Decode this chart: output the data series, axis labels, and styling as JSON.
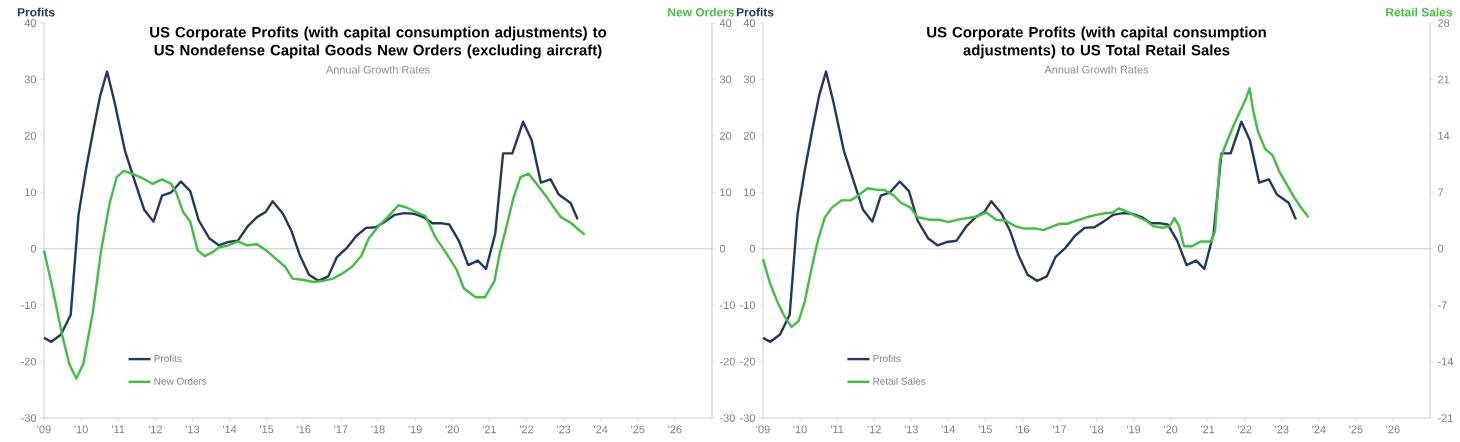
{
  "chart_data": [
    {
      "type": "line",
      "title": "US Corporate Profits (with capital consumption adjustments) to US Nondefense Capital Goods New Orders (excluding aircraft)",
      "subtitle": "Annual Growth Rates",
      "ylabel": "Profits",
      "y2label": "New Orders",
      "xlim": [
        2009,
        2027
      ],
      "ylim": [
        -30,
        40
      ],
      "y2lim": [
        -30,
        40
      ],
      "xticks": [
        {
          "value": 2009,
          "label": "'09"
        },
        {
          "value": 2010,
          "label": "'10"
        },
        {
          "value": 2011,
          "label": "'11"
        },
        {
          "value": 2012,
          "label": "'12"
        },
        {
          "value": 2013,
          "label": "'13"
        },
        {
          "value": 2014,
          "label": "'14"
        },
        {
          "value": 2015,
          "label": "'15"
        },
        {
          "value": 2016,
          "label": "'16"
        },
        {
          "value": 2017,
          "label": "'17"
        },
        {
          "value": 2018,
          "label": "'18"
        },
        {
          "value": 2019,
          "label": "'19"
        },
        {
          "value": 2020,
          "label": "'20"
        },
        {
          "value": 2021,
          "label": "'21"
        },
        {
          "value": 2022,
          "label": "'22"
        },
        {
          "value": 2023,
          "label": "'23"
        },
        {
          "value": 2024,
          "label": "'24"
        },
        {
          "value": 2025,
          "label": "'25"
        },
        {
          "value": 2026,
          "label": "'26"
        }
      ],
      "yticks": [
        -30,
        -20,
        -10,
        0,
        10,
        20,
        30,
        40
      ],
      "y2ticks": [
        -30,
        -20,
        -10,
        0,
        10,
        20,
        30,
        40
      ],
      "legend": "bottom left",
      "ref_lines": [
        {
          "axis": "y",
          "value": 0,
          "color": "#bfbfbf"
        }
      ],
      "series": [
        {
          "name": "Profits",
          "color": "#1f3864",
          "axis": "y",
          "x": [
            2009.0,
            2009.2,
            2009.46,
            2009.72,
            2009.93,
            2010.13,
            2010.32,
            2010.51,
            2010.7,
            2010.9,
            2011.18,
            2011.47,
            2011.7,
            2011.95,
            2012.18,
            2012.43,
            2012.69,
            2012.94,
            2013.17,
            2013.46,
            2013.71,
            2013.97,
            2014.22,
            2014.48,
            2014.74,
            2014.97,
            2015.16,
            2015.44,
            2015.67,
            2015.89,
            2016.14,
            2016.4,
            2016.66,
            2016.89,
            2017.17,
            2017.42,
            2017.68,
            2017.94,
            2018.19,
            2018.45,
            2018.71,
            2018.96,
            2019.22,
            2019.47,
            2019.73,
            2019.92,
            2020.18,
            2020.43,
            2020.69,
            2020.91,
            2021.16,
            2021.37,
            2021.62,
            2021.91,
            2022.14,
            2022.39,
            2022.65,
            2022.87,
            2023.19,
            2023.38
          ],
          "values": [
            -15.8,
            -16.5,
            -15.2,
            -11.7,
            6,
            14,
            20.7,
            27,
            31.4,
            26,
            17.4,
            11.5,
            6.9,
            4.8,
            9.4,
            10,
            11.9,
            10.2,
            5,
            1.8,
            0.6,
            1.2,
            1.4,
            3.9,
            5.6,
            6.5,
            8.4,
            6.2,
            3.1,
            -1.1,
            -4.6,
            -5.7,
            -4.9,
            -1.5,
            0.2,
            2.3,
            3.7,
            3.8,
            4.8,
            6,
            6.3,
            6.2,
            5.6,
            4.5,
            4.5,
            4.3,
            1.4,
            -2.9,
            -2.1,
            -3.6,
            2.7,
            16.9,
            16.9,
            22.5,
            19.2,
            11.7,
            12.3,
            9.6,
            8.1,
            5.2
          ]
        },
        {
          "name": "New Orders",
          "color": "#3ec23e",
          "axis": "y2",
          "x": [
            2009.0,
            2009.23,
            2009.49,
            2009.68,
            2009.87,
            2010.06,
            2010.32,
            2010.54,
            2010.77,
            2010.96,
            2011.15,
            2011.41,
            2011.66,
            2011.92,
            2012.18,
            2012.43,
            2012.56,
            2012.75,
            2012.94,
            2013.14,
            2013.33,
            2013.52,
            2013.71,
            2013.97,
            2014.22,
            2014.48,
            2014.74,
            2014.99,
            2015.25,
            2015.5,
            2015.7,
            2015.95,
            2016.27,
            2016.53,
            2016.78,
            2017.04,
            2017.3,
            2017.55,
            2017.75,
            2018.0,
            2018.26,
            2018.55,
            2018.77,
            2019.03,
            2019.28,
            2019.54,
            2019.79,
            2020.11,
            2020.31,
            2020.63,
            2020.88,
            2021.14,
            2021.27,
            2021.46,
            2021.65,
            2021.84,
            2022.06,
            2022.27,
            2022.52,
            2022.74,
            2022.93,
            2023.19,
            2023.38,
            2023.57
          ],
          "values": [
            -0.3,
            -7,
            -15.3,
            -20.4,
            -23,
            -20.4,
            -11.1,
            -0.3,
            8.1,
            12.7,
            13.8,
            13.2,
            12.5,
            11.5,
            12.3,
            11.5,
            10,
            6.5,
            4.8,
            -0.3,
            -1.3,
            -0.7,
            0.2,
            0.6,
            1.3,
            0.6,
            0.8,
            -0.3,
            -1.8,
            -3.2,
            -5.3,
            -5.5,
            -5.9,
            -5.7,
            -5.3,
            -4.4,
            -3.2,
            -1.3,
            1.8,
            3.9,
            5.6,
            7.7,
            7.3,
            6.5,
            5.8,
            2.1,
            -0.3,
            -3.6,
            -7,
            -8.6,
            -8.6,
            -5.7,
            -1.1,
            3.9,
            9,
            12.7,
            13.3,
            11.5,
            9.4,
            7.3,
            5.6,
            4.6,
            3.5,
            2.5
          ]
        }
      ]
    },
    {
      "type": "line",
      "title": "US Corporate Profits (with capital consumption adjustments) to US Total Retail Sales",
      "subtitle": "Annual Growth Rates",
      "ylabel": "Profits",
      "y2label": "Retail Sales",
      "xlim": [
        2009,
        2027
      ],
      "ylim": [
        -30,
        40
      ],
      "y2lim": [
        -21,
        28
      ],
      "xticks": [
        {
          "value": 2009,
          "label": "'09"
        },
        {
          "value": 2010,
          "label": "'10"
        },
        {
          "value": 2011,
          "label": "'11"
        },
        {
          "value": 2012,
          "label": "'12"
        },
        {
          "value": 2013,
          "label": "'13"
        },
        {
          "value": 2014,
          "label": "'14"
        },
        {
          "value": 2015,
          "label": "'15"
        },
        {
          "value": 2016,
          "label": "'16"
        },
        {
          "value": 2017,
          "label": "'17"
        },
        {
          "value": 2018,
          "label": "'18"
        },
        {
          "value": 2019,
          "label": "'19"
        },
        {
          "value": 2020,
          "label": "'20"
        },
        {
          "value": 2021,
          "label": "'21"
        },
        {
          "value": 2022,
          "label": "'22"
        },
        {
          "value": 2023,
          "label": "'23"
        },
        {
          "value": 2024,
          "label": "'24"
        },
        {
          "value": 2025,
          "label": "'25"
        },
        {
          "value": 2026,
          "label": "'26"
        }
      ],
      "yticks": [
        -30,
        -20,
        -10,
        0,
        10,
        20,
        30,
        40
      ],
      "y2ticks": [
        -21,
        -14,
        -7,
        0,
        7,
        14,
        21,
        28
      ],
      "legend": "bottom left",
      "ref_lines": [
        {
          "axis": "y",
          "value": 0,
          "color": "#bfbfbf"
        }
      ],
      "series": [
        {
          "name": "Profits",
          "color": "#1f3864",
          "axis": "y",
          "x": [
            2009.0,
            2009.2,
            2009.46,
            2009.72,
            2009.93,
            2010.13,
            2010.32,
            2010.51,
            2010.7,
            2010.9,
            2011.18,
            2011.47,
            2011.7,
            2011.95,
            2012.18,
            2012.43,
            2012.69,
            2012.94,
            2013.17,
            2013.46,
            2013.71,
            2013.97,
            2014.22,
            2014.48,
            2014.74,
            2014.97,
            2015.16,
            2015.44,
            2015.67,
            2015.89,
            2016.14,
            2016.4,
            2016.66,
            2016.89,
            2017.17,
            2017.42,
            2017.68,
            2017.94,
            2018.19,
            2018.45,
            2018.71,
            2018.96,
            2019.22,
            2019.47,
            2019.73,
            2019.92,
            2020.18,
            2020.43,
            2020.69,
            2020.91,
            2021.16,
            2021.37,
            2021.62,
            2021.91,
            2022.14,
            2022.39,
            2022.65,
            2022.87,
            2023.19,
            2023.38
          ],
          "values": [
            -15.8,
            -16.5,
            -15.2,
            -11.7,
            6,
            14,
            20.7,
            27,
            31.4,
            26,
            17.4,
            11.5,
            6.9,
            4.8,
            9.4,
            10,
            11.9,
            10.2,
            5,
            1.8,
            0.6,
            1.2,
            1.4,
            3.9,
            5.6,
            6.5,
            8.4,
            6.2,
            3.1,
            -1.1,
            -4.6,
            -5.7,
            -4.9,
            -1.5,
            0.2,
            2.3,
            3.7,
            3.8,
            4.8,
            6,
            6.3,
            6.2,
            5.6,
            4.5,
            4.5,
            4.3,
            1.4,
            -2.9,
            -2.1,
            -3.6,
            2.7,
            16.9,
            16.9,
            22.5,
            19.2,
            11.7,
            12.3,
            9.6,
            8.1,
            5.2
          ]
        },
        {
          "name": "Retail Sales",
          "color": "#3ec23e",
          "axis": "y2",
          "x": [
            2009.0,
            2009.19,
            2009.39,
            2009.58,
            2009.77,
            2009.96,
            2010.13,
            2010.28,
            2010.48,
            2010.67,
            2010.86,
            2011.12,
            2011.37,
            2011.57,
            2011.82,
            2012.08,
            2012.27,
            2012.53,
            2012.72,
            2012.98,
            2013.17,
            2013.49,
            2013.75,
            2014.0,
            2014.26,
            2014.52,
            2014.78,
            2015.03,
            2015.29,
            2015.54,
            2015.8,
            2016.06,
            2016.38,
            2016.57,
            2016.83,
            2017.02,
            2017.22,
            2017.47,
            2017.73,
            2017.99,
            2018.24,
            2018.44,
            2018.6,
            2018.82,
            2019.08,
            2019.33,
            2019.53,
            2019.78,
            2019.98,
            2020.1,
            2020.23,
            2020.36,
            2020.58,
            2020.81,
            2021.1,
            2021.2,
            2021.33,
            2021.52,
            2021.71,
            2021.91,
            2022.04,
            2022.13,
            2022.23,
            2022.36,
            2022.55,
            2022.75,
            2022.94,
            2023.13,
            2023.33,
            2023.52,
            2023.72
          ],
          "values": [
            -1.3,
            -4.3,
            -6.6,
            -8.4,
            -9.7,
            -9,
            -6.5,
            -3.1,
            1,
            3.9,
            5.1,
            6,
            6,
            6.6,
            7.5,
            7.3,
            7.3,
            6.6,
            5.7,
            5.1,
            3.9,
            3.6,
            3.6,
            3.3,
            3.6,
            3.8,
            4,
            4.5,
            3.6,
            3.5,
            2.8,
            2.5,
            2.5,
            2.3,
            2.8,
            3.1,
            3.1,
            3.5,
            3.9,
            4.2,
            4.4,
            4.5,
            5,
            4.6,
            4,
            3.5,
            2.8,
            2.6,
            2.8,
            3.8,
            2.8,
            0.3,
            0.3,
            0.9,
            0.9,
            2.2,
            11,
            13.3,
            15.4,
            17.4,
            18.7,
            19.9,
            17.1,
            14.5,
            12.4,
            11.6,
            9.5,
            8,
            6.4,
            5.1,
            3.9
          ]
        }
      ]
    }
  ]
}
